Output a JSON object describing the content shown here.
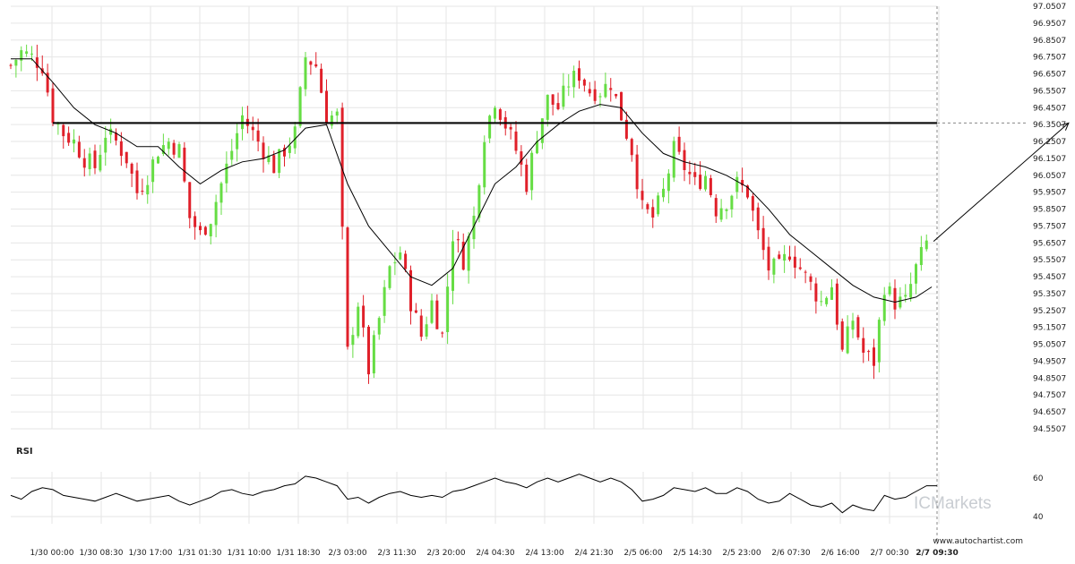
{
  "colors": {
    "up": "#66dd44",
    "down": "#e0202a",
    "grid": "#e6e6e6",
    "line": "#000000",
    "text": "#222222",
    "watermark": "#c9cdd2"
  },
  "watermark": {
    "text": "ICMarkets"
  },
  "source": {
    "text": "www.autochartist.com"
  },
  "chart_data": [
    {
      "type": "candlestick",
      "title": "",
      "grid": true,
      "y_axis_position": "right",
      "x_tick_labels": [
        "1/30 00:00",
        "1/30 08:30",
        "1/30 17:00",
        "1/31 01:30",
        "1/31 10:00",
        "1/31 18:30",
        "2/3 03:00",
        "2/3 11:30",
        "2/3 20:00",
        "2/4 04:30",
        "2/4 13:00",
        "2/4 21:30",
        "2/5 06:00",
        "2/5 14:30",
        "2/5 23:00",
        "2/6 07:30",
        "2/6 16:00",
        "2/7 00:30",
        "2/7 09:30"
      ],
      "y_ticks": [
        "94.5507",
        "94.6507",
        "94.7507",
        "94.8507",
        "94.9507",
        "95.0507",
        "95.1507",
        "95.2507",
        "95.3507",
        "95.4507",
        "95.5507",
        "95.6507",
        "95.7507",
        "95.8507",
        "95.9507",
        "96.0507",
        "96.1507",
        "96.2507",
        "96.3507",
        "96.4507",
        "96.5507",
        "96.6507",
        "96.7507",
        "96.8507",
        "96.9507",
        "97.0507"
      ],
      "ylim": [
        94.5507,
        97.0507
      ],
      "close_series": [
        [
          0,
          96.7
        ],
        [
          2,
          96.78
        ],
        [
          4,
          96.75
        ],
        [
          6,
          96.7
        ],
        [
          8,
          96.4
        ],
        [
          10,
          96.3
        ],
        [
          12,
          96.25
        ],
        [
          14,
          96.15
        ],
        [
          16,
          96.1
        ],
        [
          18,
          96.3
        ],
        [
          20,
          96.25
        ],
        [
          22,
          96.15
        ],
        [
          24,
          95.95
        ],
        [
          26,
          96.05
        ],
        [
          28,
          96.2
        ],
        [
          30,
          96.25
        ],
        [
          32,
          96.2
        ],
        [
          34,
          95.8
        ],
        [
          36,
          95.7
        ],
        [
          38,
          95.8
        ],
        [
          40,
          96.0
        ],
        [
          42,
          96.2
        ],
        [
          44,
          96.4
        ],
        [
          46,
          96.3
        ],
        [
          48,
          96.2
        ],
        [
          50,
          96.1
        ],
        [
          52,
          96.2
        ],
        [
          54,
          96.3
        ],
        [
          56,
          96.75
        ],
        [
          58,
          96.7
        ],
        [
          60,
          96.4
        ],
        [
          62,
          96.4
        ],
        [
          64,
          95.0
        ],
        [
          66,
          95.3
        ],
        [
          68,
          94.9
        ],
        [
          70,
          95.2
        ],
        [
          72,
          95.5
        ],
        [
          74,
          95.6
        ],
        [
          76,
          95.3
        ],
        [
          78,
          95.1
        ],
        [
          80,
          95.3
        ],
        [
          82,
          95.1
        ],
        [
          84,
          95.7
        ],
        [
          86,
          95.55
        ],
        [
          88,
          95.8
        ],
        [
          90,
          96.3
        ],
        [
          92,
          96.5
        ],
        [
          94,
          96.35
        ],
        [
          96,
          96.2
        ],
        [
          98,
          96.0
        ],
        [
          100,
          96.3
        ],
        [
          102,
          96.5
        ],
        [
          104,
          96.45
        ],
        [
          106,
          96.6
        ],
        [
          108,
          96.65
        ],
        [
          110,
          96.55
        ],
        [
          112,
          96.55
        ],
        [
          114,
          96.6
        ],
        [
          116,
          96.4
        ],
        [
          118,
          96.2
        ],
        [
          120,
          95.85
        ],
        [
          122,
          95.8
        ],
        [
          124,
          95.95
        ],
        [
          126,
          96.2
        ],
        [
          128,
          96.1
        ],
        [
          130,
          96.0
        ],
        [
          132,
          96.05
        ],
        [
          134,
          95.85
        ],
        [
          136,
          95.9
        ],
        [
          138,
          96.0
        ],
        [
          140,
          95.95
        ],
        [
          142,
          95.7
        ],
        [
          144,
          95.5
        ],
        [
          146,
          95.5
        ],
        [
          148,
          95.6
        ],
        [
          150,
          95.5
        ],
        [
          152,
          95.4
        ],
        [
          154,
          95.3
        ],
        [
          156,
          95.4
        ],
        [
          158,
          95.0
        ],
        [
          160,
          95.2
        ],
        [
          162,
          95.0
        ],
        [
          164,
          94.95
        ],
        [
          166,
          95.4
        ],
        [
          168,
          95.3
        ],
        [
          170,
          95.3
        ],
        [
          172,
          95.5
        ],
        [
          174,
          95.65
        ]
      ],
      "moving_average": [
        [
          0,
          96.74
        ],
        [
          4,
          96.74
        ],
        [
          8,
          96.6
        ],
        [
          12,
          96.45
        ],
        [
          16,
          96.35
        ],
        [
          20,
          96.3
        ],
        [
          24,
          96.22
        ],
        [
          28,
          96.22
        ],
        [
          32,
          96.1
        ],
        [
          36,
          96.0
        ],
        [
          40,
          96.08
        ],
        [
          44,
          96.13
        ],
        [
          48,
          96.15
        ],
        [
          52,
          96.2
        ],
        [
          56,
          96.33
        ],
        [
          60,
          96.35
        ],
        [
          64,
          96.0
        ],
        [
          68,
          95.75
        ],
        [
          72,
          95.6
        ],
        [
          76,
          95.45
        ],
        [
          80,
          95.4
        ],
        [
          84,
          95.5
        ],
        [
          88,
          95.75
        ],
        [
          92,
          96.0
        ],
        [
          96,
          96.1
        ],
        [
          100,
          96.25
        ],
        [
          104,
          96.35
        ],
        [
          108,
          96.43
        ],
        [
          112,
          96.47
        ],
        [
          116,
          96.45
        ],
        [
          120,
          96.3
        ],
        [
          124,
          96.18
        ],
        [
          128,
          96.13
        ],
        [
          132,
          96.1
        ],
        [
          136,
          96.05
        ],
        [
          140,
          95.98
        ],
        [
          144,
          95.85
        ],
        [
          148,
          95.7
        ],
        [
          152,
          95.6
        ],
        [
          156,
          95.5
        ],
        [
          160,
          95.4
        ],
        [
          164,
          95.33
        ],
        [
          168,
          95.3
        ],
        [
          172,
          95.33
        ],
        [
          175,
          95.39
        ]
      ],
      "horizontal_level": 96.36,
      "level_start_index": 8,
      "forecast": {
        "from": [
          175,
          95.66
        ],
        "to": [
          201,
          96.36
        ]
      }
    },
    {
      "type": "line",
      "title": "RSI",
      "y_ticks": [
        "40",
        "60"
      ],
      "ylim": [
        30,
        70
      ],
      "values": [
        [
          0,
          51
        ],
        [
          2,
          49
        ],
        [
          4,
          53
        ],
        [
          6,
          55
        ],
        [
          8,
          54
        ],
        [
          10,
          51
        ],
        [
          12,
          50
        ],
        [
          14,
          49
        ],
        [
          16,
          48
        ],
        [
          18,
          50
        ],
        [
          20,
          52
        ],
        [
          22,
          50
        ],
        [
          24,
          48
        ],
        [
          26,
          49
        ],
        [
          28,
          50
        ],
        [
          30,
          51
        ],
        [
          32,
          48
        ],
        [
          34,
          46
        ],
        [
          36,
          48
        ],
        [
          38,
          50
        ],
        [
          40,
          53
        ],
        [
          42,
          54
        ],
        [
          44,
          52
        ],
        [
          46,
          51
        ],
        [
          48,
          53
        ],
        [
          50,
          54
        ],
        [
          52,
          56
        ],
        [
          54,
          57
        ],
        [
          56,
          61
        ],
        [
          58,
          60
        ],
        [
          60,
          58
        ],
        [
          62,
          56
        ],
        [
          64,
          49
        ],
        [
          66,
          50
        ],
        [
          68,
          47
        ],
        [
          70,
          50
        ],
        [
          72,
          52
        ],
        [
          74,
          53
        ],
        [
          76,
          51
        ],
        [
          78,
          50
        ],
        [
          80,
          51
        ],
        [
          82,
          50
        ],
        [
          84,
          53
        ],
        [
          86,
          54
        ],
        [
          88,
          56
        ],
        [
          90,
          58
        ],
        [
          92,
          60
        ],
        [
          94,
          58
        ],
        [
          96,
          57
        ],
        [
          98,
          55
        ],
        [
          100,
          58
        ],
        [
          102,
          60
        ],
        [
          104,
          58
        ],
        [
          106,
          60
        ],
        [
          108,
          62
        ],
        [
          110,
          60
        ],
        [
          112,
          58
        ],
        [
          114,
          60
        ],
        [
          116,
          58
        ],
        [
          118,
          54
        ],
        [
          120,
          48
        ],
        [
          122,
          49
        ],
        [
          124,
          51
        ],
        [
          126,
          55
        ],
        [
          128,
          54
        ],
        [
          130,
          53
        ],
        [
          132,
          55
        ],
        [
          134,
          52
        ],
        [
          136,
          52
        ],
        [
          138,
          55
        ],
        [
          140,
          53
        ],
        [
          142,
          49
        ],
        [
          144,
          47
        ],
        [
          146,
          48
        ],
        [
          148,
          52
        ],
        [
          150,
          49
        ],
        [
          152,
          46
        ],
        [
          154,
          45
        ],
        [
          156,
          47
        ],
        [
          158,
          42
        ],
        [
          160,
          46
        ],
        [
          162,
          44
        ],
        [
          164,
          43
        ],
        [
          166,
          51
        ],
        [
          168,
          49
        ],
        [
          170,
          50
        ],
        [
          172,
          53
        ],
        [
          174,
          56
        ],
        [
          176,
          56
        ]
      ]
    }
  ]
}
